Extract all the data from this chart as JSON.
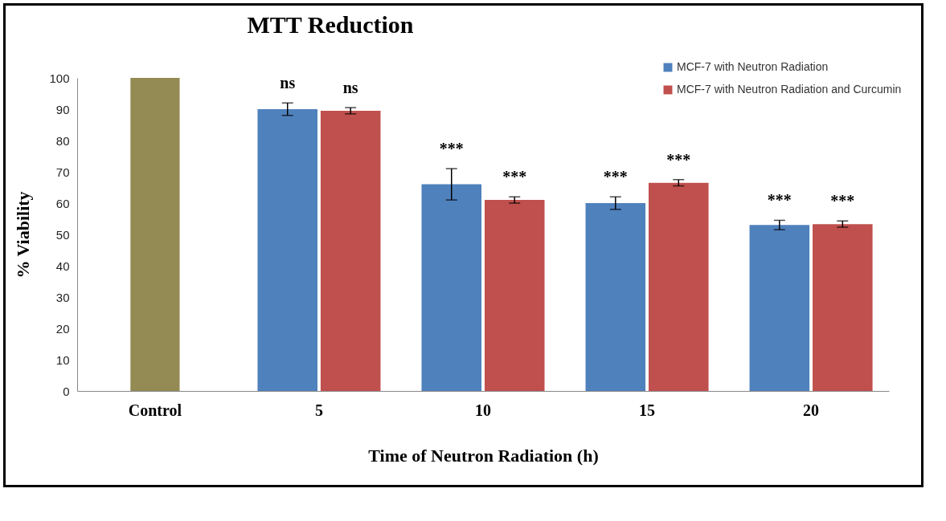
{
  "chart_data": {
    "type": "bar",
    "title": "MTT  Reduction",
    "xlabel": "Time of Neutron Radiation (h)",
    "ylabel": "% Viability",
    "categories": [
      "Control",
      "5",
      "10",
      "15",
      "20"
    ],
    "series": [
      {
        "color": "#948a54",
        "values": [
          100,
          null,
          null,
          null,
          null
        ]
      },
      {
        "name": "MCF-7  with Neutron Radiation",
        "color": "#4f81bd",
        "values": [
          null,
          90,
          66,
          60,
          53
        ],
        "errors": [
          null,
          2,
          5,
          2,
          1.5
        ]
      },
      {
        "name": "MCF-7  with Neutron Radiation and Curcumin",
        "color": "#c0504d",
        "values": [
          null,
          89.5,
          61,
          66.5,
          53.3
        ],
        "errors": [
          null,
          1,
          1,
          1,
          1
        ]
      }
    ],
    "ylim": [
      0,
      100
    ],
    "yticks": [
      0,
      10,
      20,
      30,
      40,
      50,
      60,
      70,
      80,
      90,
      100
    ],
    "grid": false,
    "legend": "top right",
    "annotations": [
      {
        "text": "ns",
        "x": "5",
        "y": 90
      },
      {
        "text": "ns",
        "x": "5",
        "y": 89.5
      },
      {
        "text": "***",
        "x": "10",
        "y": 66
      },
      {
        "text": "***",
        "x": "10",
        "y": 61
      },
      {
        "text": "***",
        "x": "15",
        "y": 60
      },
      {
        "text": "***",
        "x": "15",
        "y": 66.5
      },
      {
        "text": "***",
        "x": "20",
        "y": 53
      },
      {
        "text": "***",
        "x": "20",
        "y": 53.3
      }
    ]
  }
}
